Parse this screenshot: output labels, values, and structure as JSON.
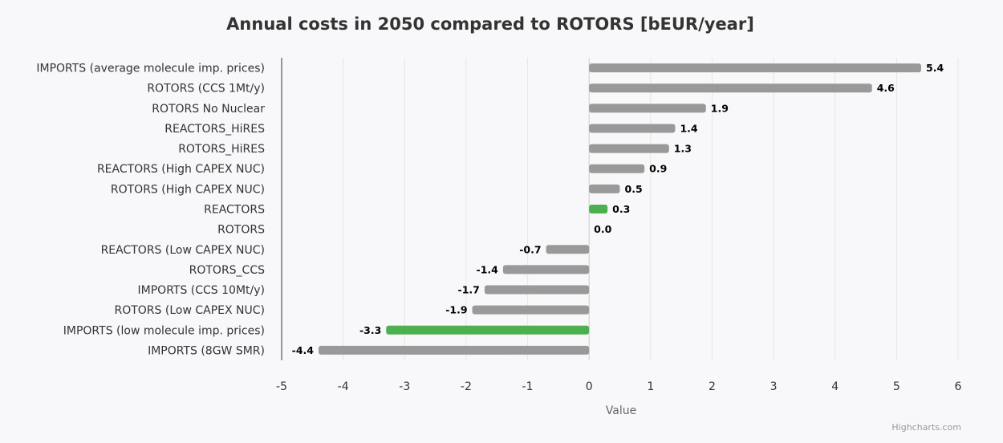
{
  "chart_data": {
    "type": "bar",
    "orientation": "horizontal",
    "title": "Annual costs in 2050 compared to ROTORS [bEUR/year]",
    "xlabel": "Value",
    "xlim": [
      -5,
      6
    ],
    "xticks": [
      -5,
      -4,
      -3,
      -2,
      -1,
      0,
      1,
      2,
      3,
      4,
      5,
      6
    ],
    "grid": true,
    "credits": "Highcharts.com",
    "categories": [
      "IMPORTS (average molecule imp. prices)",
      "ROTORS (CCS 1Mt/y)",
      "ROTORS No Nuclear",
      "REACTORS_HiRES",
      "ROTORS_HiRES",
      "REACTORS (High CAPEX NUC)",
      "ROTORS (High CAPEX NUC)",
      "REACTORS",
      "ROTORS",
      "REACTORS (Low CAPEX NUC)",
      "ROTORS_CCS",
      "IMPORTS (CCS 10Mt/y)",
      "ROTORS (Low CAPEX NUC)",
      "IMPORTS (low molecule imp. prices)",
      "IMPORTS (8GW SMR)"
    ],
    "values": [
      5.4,
      4.6,
      1.9,
      1.4,
      1.3,
      0.9,
      0.5,
      0.3,
      0.0,
      -0.7,
      -1.4,
      -1.7,
      -1.9,
      -3.3,
      -4.4
    ],
    "highlighted": [
      "REACTORS",
      "IMPORTS (low molecule imp. prices)"
    ],
    "colors": {
      "default": "#999999",
      "highlight": "#4caf50"
    }
  }
}
